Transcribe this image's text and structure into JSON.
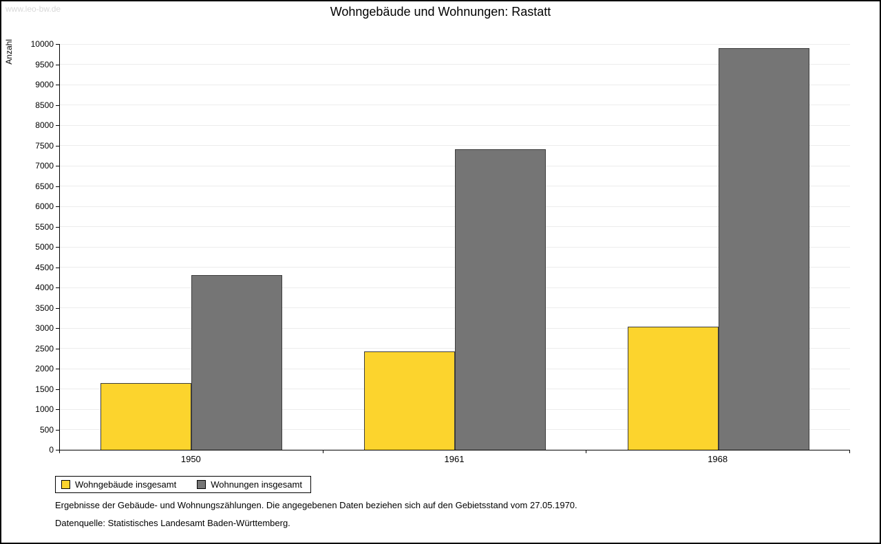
{
  "page": {
    "watermark": "www.leo-bw.de",
    "title": "Wohngebäude und Wohnungen: Rastatt"
  },
  "chart_data": {
    "type": "bar",
    "title": "Wohngebäude und Wohnungen: Rastatt",
    "xlabel": "",
    "ylabel": "Anzahl",
    "categories": [
      "1950",
      "1961",
      "1968"
    ],
    "series": [
      {
        "name": "Wohngebäude insgesamt",
        "color": "#fcd42d",
        "values": [
          1650,
          2430,
          3030
        ]
      },
      {
        "name": "Wohnungen insgesamt",
        "color": "#757575",
        "values": [
          4300,
          7400,
          9900
        ]
      }
    ],
    "ylim": [
      0,
      10000
    ],
    "ytick_step": 500,
    "grid": true,
    "legend_position": "bottom-left"
  },
  "footnotes": {
    "line1": "Ergebnisse der Gebäude- und Wohnungszählungen. Die angegebenen Daten beziehen sich auf den Gebietsstand vom 27.05.1970.",
    "line2": "Datenquelle: Statistisches Landesamt Baden-Württemberg."
  }
}
